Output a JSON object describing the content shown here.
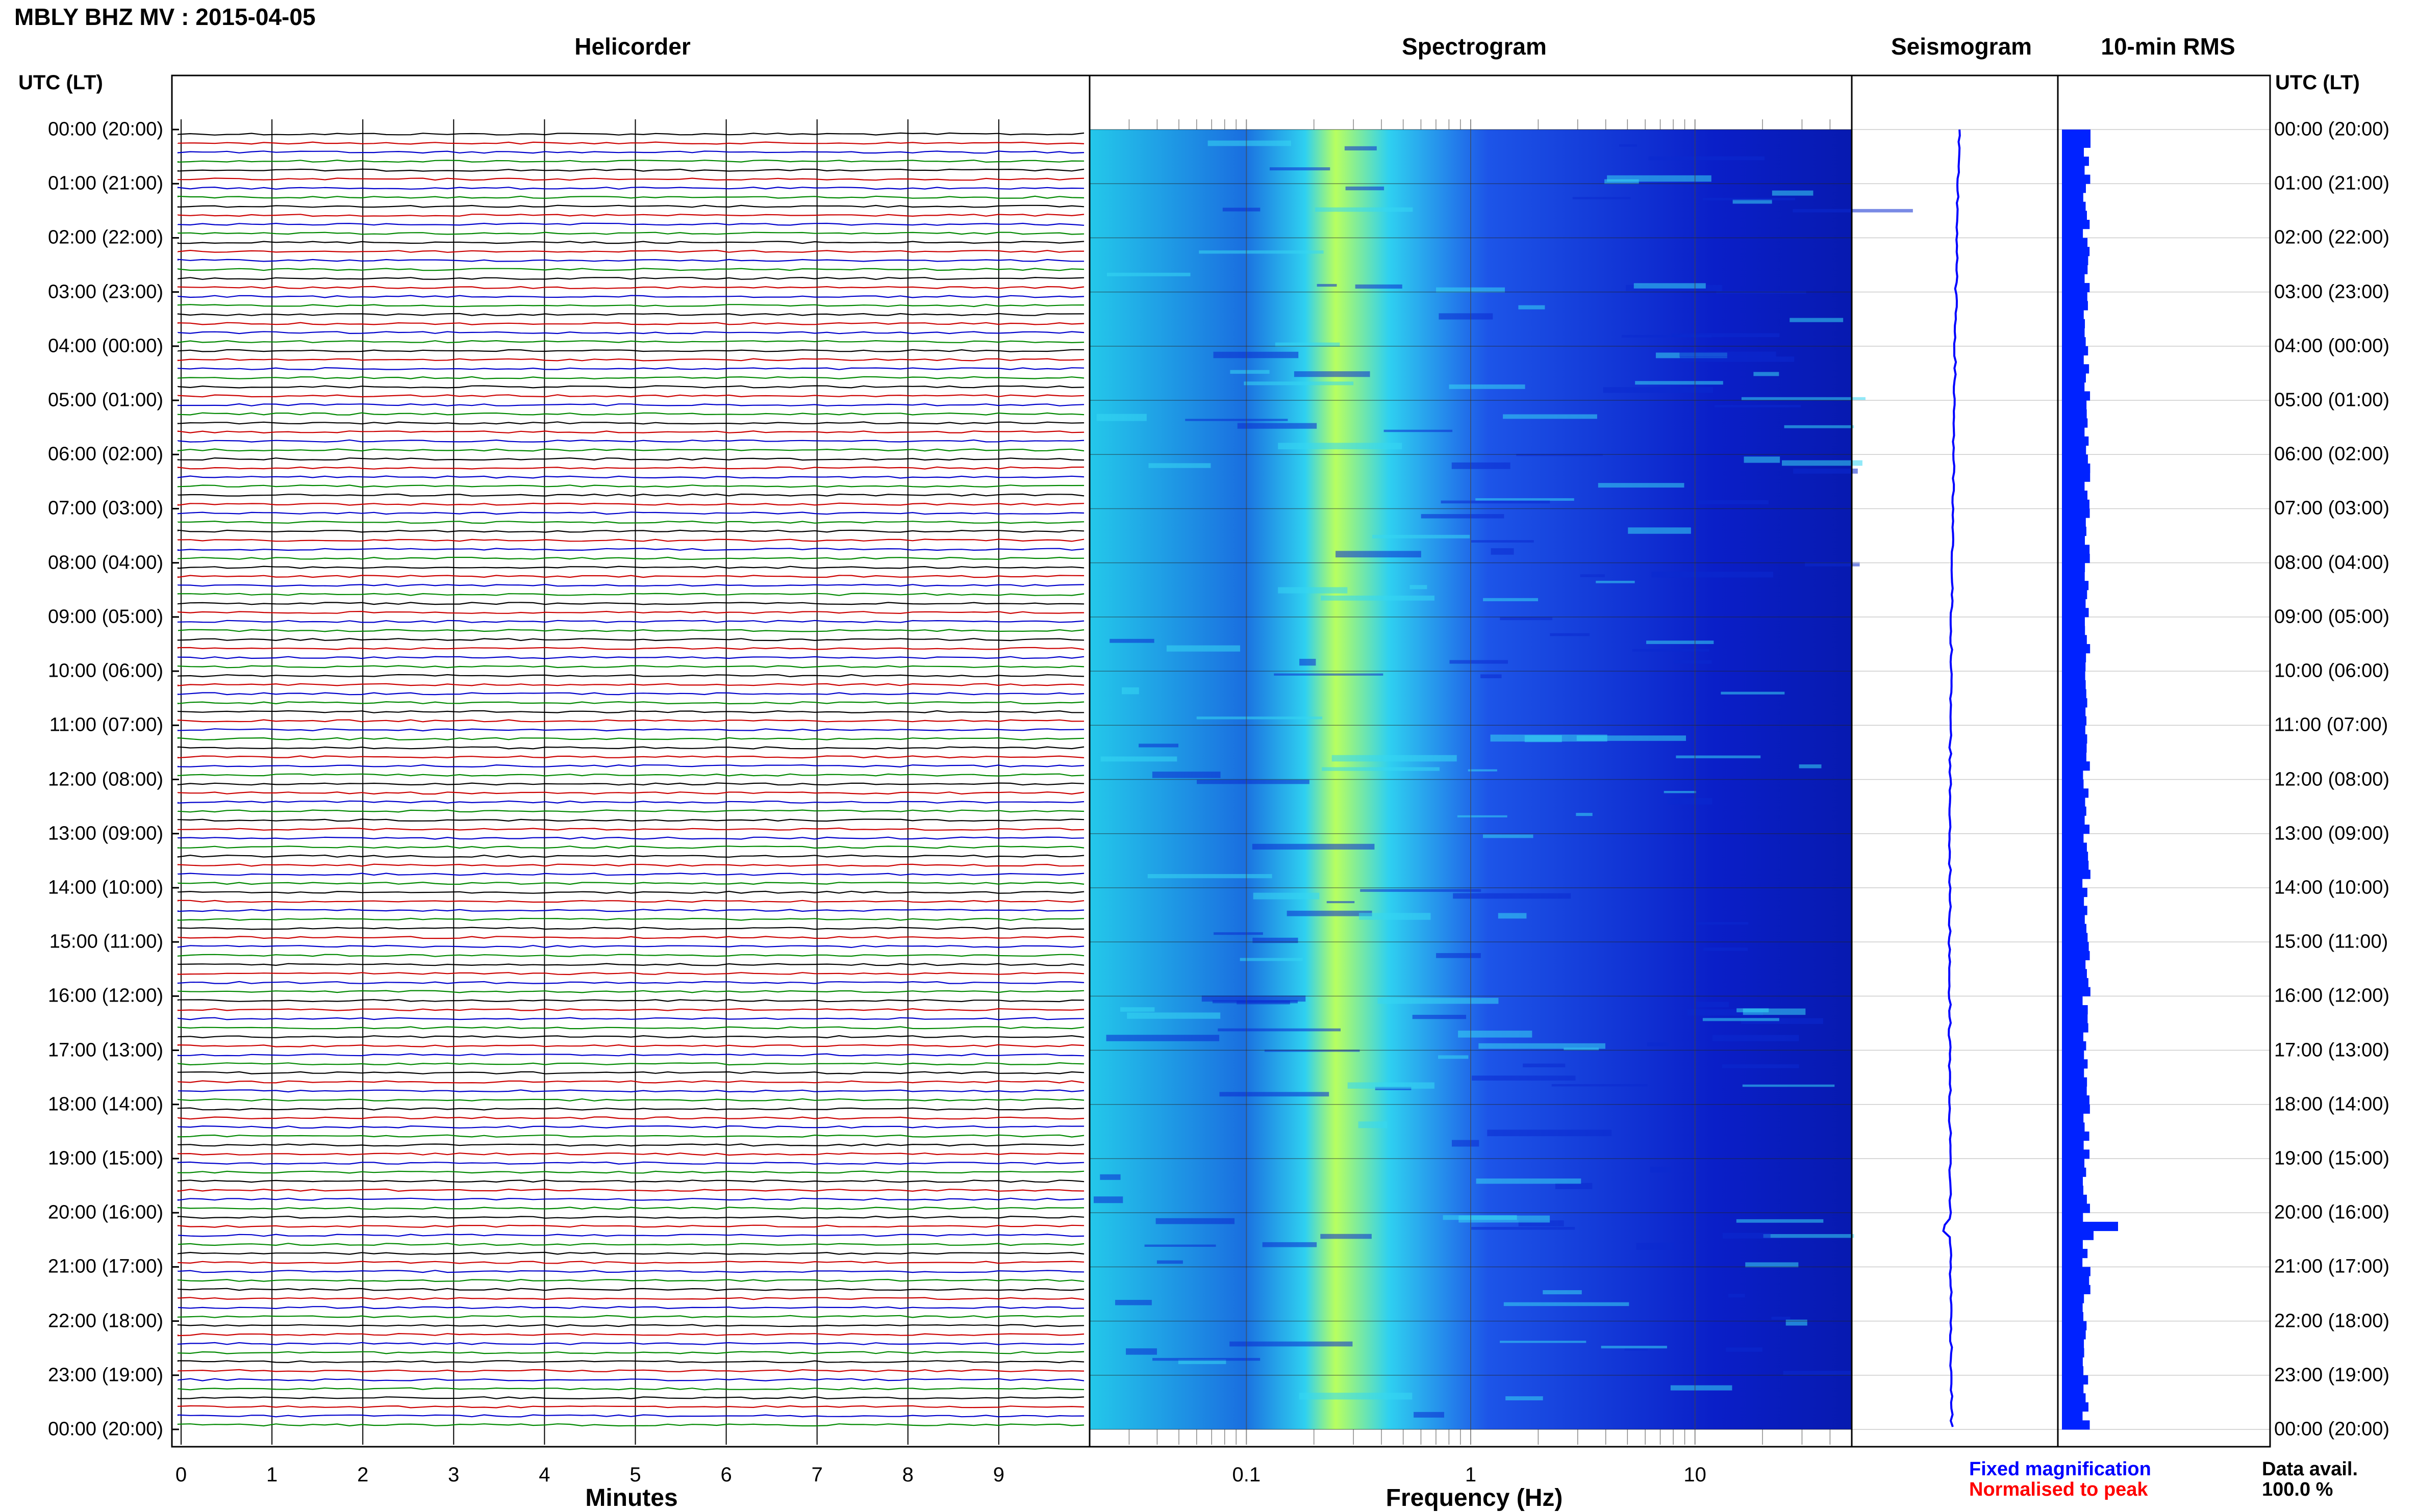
{
  "header": {
    "station_title": "MBLY BHZ MV : 2015-04-05"
  },
  "panels": {
    "helicorder": "Helicorder",
    "spectrogram": "Spectrogram",
    "seismogram": "Seismogram",
    "rms": "10-min RMS"
  },
  "axes": {
    "utc_header_left": "UTC (LT)",
    "utc_header_right": "UTC (LT)",
    "time_labels": [
      "00:00 (20:00)",
      "01:00 (21:00)",
      "02:00 (22:00)",
      "03:00 (23:00)",
      "04:00 (00:00)",
      "05:00 (01:00)",
      "06:00 (02:00)",
      "07:00 (03:00)",
      "08:00 (04:00)",
      "09:00 (05:00)",
      "10:00 (06:00)",
      "11:00 (07:00)",
      "12:00 (08:00)",
      "13:00 (09:00)",
      "14:00 (10:00)",
      "15:00 (11:00)",
      "16:00 (12:00)",
      "17:00 (13:00)",
      "18:00 (14:00)",
      "19:00 (15:00)",
      "20:00 (16:00)",
      "21:00 (17:00)",
      "22:00 (18:00)",
      "23:00 (19:00)",
      "00:00 (20:00)"
    ],
    "minutes_ticks": [
      "0",
      "1",
      "2",
      "3",
      "4",
      "5",
      "6",
      "7",
      "8",
      "9"
    ],
    "minutes_label": "Minutes",
    "freq_ticks": [
      "0.1",
      "1",
      "10"
    ],
    "freq_label": "Frequency (Hz)"
  },
  "legend": {
    "fixed": "Fixed magnification",
    "normalised": "Normalised to peak",
    "fixed_color": "#0000ff",
    "normalised_color": "#ff0000"
  },
  "availability": {
    "label": "Data avail.",
    "value": "100.0 %"
  },
  "colors": {
    "trace_cycle": [
      "#000000",
      "#cc0000",
      "#0000cc",
      "#008800"
    ],
    "rms_bar": "#0022ff",
    "spectrogram_low": "#0a1fc8",
    "spectrogram_mid": "#2fd0f0",
    "spectrogram_peak": "#b8ff60"
  },
  "chart_data": [
    {
      "type": "line",
      "title": "Helicorder",
      "xlabel": "Minutes",
      "ylabel": "UTC (LT)",
      "xlim": [
        0,
        10
      ],
      "trace_interval_minutes": 10,
      "traces_per_hour": 6,
      "hours": 24,
      "grid": true
    },
    {
      "type": "heatmap",
      "title": "Spectrogram",
      "xlabel": "Frequency (Hz)",
      "x_scale": "log",
      "xlim": [
        0.02,
        50
      ],
      "peak_frequency_hz": 0.25,
      "grid": true
    },
    {
      "type": "line",
      "title": "Seismogram",
      "legend": [
        "Fixed magnification",
        "Normalised to peak"
      ]
    },
    {
      "type": "bar",
      "title": "10-min RMS",
      "orientation": "horizontal",
      "bins_per_hour": 6,
      "hours": 24,
      "notes": "values roughly constant, a peak near 20:10 UTC"
    }
  ]
}
